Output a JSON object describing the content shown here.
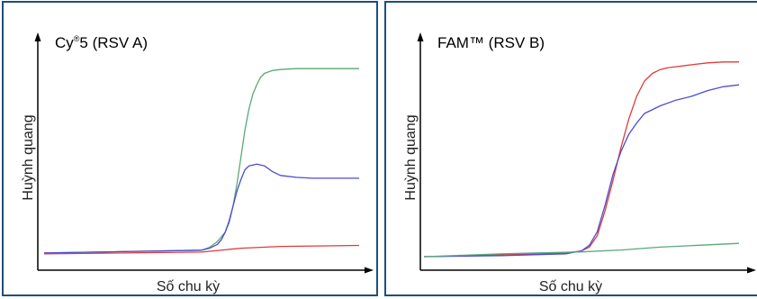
{
  "chart_data": [
    {
      "type": "line",
      "title": "Cy®5 (RSV A)",
      "title_main": "Cy",
      "title_sup": "®",
      "title_rest": "5 (RSV A)",
      "xlabel": "Số chu kỳ",
      "ylabel": "Huỳnh quang",
      "xlim": [
        0,
        40
      ],
      "ylim": [
        0,
        100
      ],
      "grid": false,
      "series": [
        {
          "color": "#5aa878",
          "x": [
            0,
            20,
            21,
            22,
            23,
            23.5,
            24,
            24.5,
            25,
            25.5,
            26,
            26.5,
            27,
            27.5,
            28,
            29,
            30,
            32,
            36,
            40
          ],
          "y": [
            1,
            2.5,
            4,
            7,
            12,
            17,
            26,
            38,
            52,
            66,
            77,
            85,
            90,
            94,
            96,
            97.5,
            98,
            98.5,
            98.5,
            98.5
          ]
        },
        {
          "color": "#4b4bd6",
          "x": [
            0,
            20,
            21,
            22,
            22.5,
            23,
            23.5,
            24,
            24.5,
            25,
            25.5,
            26,
            27,
            28,
            29,
            30,
            32,
            34,
            36,
            38,
            40
          ],
          "y": [
            1,
            2.5,
            3.5,
            5.5,
            8,
            12,
            18,
            26,
            34,
            40,
            45,
            47,
            48,
            47,
            44,
            42,
            41,
            40.5,
            40.5,
            40.5,
            40.5
          ]
        },
        {
          "color": "#e03a3a",
          "x": [
            0,
            10,
            20,
            25,
            30,
            40
          ],
          "y": [
            0.5,
            1,
            1.5,
            3.5,
            4.5,
            5
          ]
        }
      ]
    },
    {
      "type": "line",
      "title": "FAM™ (RSV B)",
      "title_main": "FAM™ (RSV B)",
      "title_sup": "",
      "title_rest": "",
      "xlabel": "Số chu kỳ",
      "ylabel": "Huỳnh quang",
      "xlim": [
        0,
        40
      ],
      "ylim": [
        0,
        100
      ],
      "grid": false,
      "series": [
        {
          "color": "#e03a3a",
          "x": [
            0,
            10,
            18,
            20,
            21,
            22,
            23,
            24,
            25,
            26,
            27,
            28,
            29,
            30,
            31,
            32,
            34,
            36,
            38,
            40
          ],
          "y": [
            0,
            1,
            2,
            3,
            5,
            11,
            24,
            40,
            57,
            72,
            84,
            92,
            96,
            98,
            99,
            99.5,
            100.5,
            101.5,
            102,
            102
          ]
        },
        {
          "color": "#4b4bd6",
          "x": [
            0,
            10,
            18,
            20,
            21,
            22,
            23,
            24,
            25,
            26,
            27,
            28,
            30,
            32,
            34,
            36,
            38,
            40
          ],
          "y": [
            0,
            0.5,
            1.5,
            3,
            6,
            13,
            27,
            43,
            55,
            64,
            70,
            75,
            79,
            82,
            84,
            87,
            89,
            90
          ]
        },
        {
          "color": "#5aa878",
          "x": [
            0,
            10,
            20,
            25,
            30,
            35,
            40
          ],
          "y": [
            0,
            1.5,
            2.5,
            3.5,
            5,
            6,
            7
          ]
        }
      ]
    }
  ]
}
